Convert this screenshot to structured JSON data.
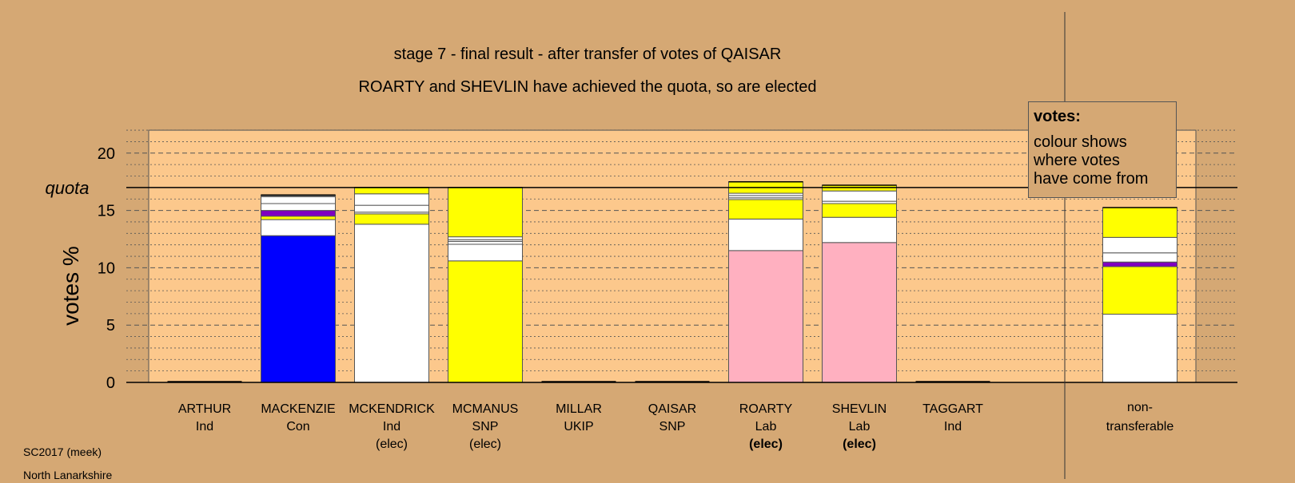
{
  "chart_data": {
    "type": "bar",
    "stacked": true,
    "title": "stage 7 - final result - after transfer of votes of QAISAR",
    "subtitle": "ROARTY and SHEVLIN have achieved the quota, so are elected",
    "ylabel": "votes %",
    "ylim": [
      0,
      22
    ],
    "yticks": [
      0,
      5,
      10,
      15,
      20
    ],
    "grid": true,
    "quota": 17.0,
    "quota_label": "quota",
    "legend": {
      "title": "votes:",
      "body": "colour shows\nwhere votes\nhave come from",
      "placement": "top-right"
    },
    "categories": [
      {
        "name": "ARTHUR",
        "party": "Ind",
        "status": "",
        "status_bold": false,
        "segments": []
      },
      {
        "name": "MACKENZIE",
        "party": "Con",
        "status": "",
        "status_bold": false,
        "segments": [
          {
            "value": 12.8,
            "color": "#0000ff"
          },
          {
            "value": 1.4,
            "color": "#ffffff"
          },
          {
            "value": 0.3,
            "color": "#ffff00"
          },
          {
            "value": 0.5,
            "color": "#8000c0"
          },
          {
            "value": 0.6,
            "color": "#ffffff"
          },
          {
            "value": 0.6,
            "color": "#ffffff"
          },
          {
            "value": 0.05,
            "color": "#ffffff"
          },
          {
            "value": 0.1,
            "color": "#ffffff"
          }
        ]
      },
      {
        "name": "MCKENDRICK",
        "party": "Ind",
        "status": "(elec)",
        "status_bold": false,
        "segments": [
          {
            "value": 13.8,
            "color": "#ffffff"
          },
          {
            "value": 0.9,
            "color": "#ffff00"
          },
          {
            "value": 0.15,
            "color": "#ffffff"
          },
          {
            "value": 0.6,
            "color": "#ffffff"
          },
          {
            "value": 1.0,
            "color": "#ffffff"
          },
          {
            "value": 0.55,
            "color": "#ffff00"
          }
        ]
      },
      {
        "name": "MCMANUS",
        "party": "SNP",
        "status": "(elec)",
        "status_bold": false,
        "segments": [
          {
            "value": 10.6,
            "color": "#ffff00"
          },
          {
            "value": 1.45,
            "color": "#ffffff"
          },
          {
            "value": 0.25,
            "color": "#ffffff"
          },
          {
            "value": 0.15,
            "color": "#ffffff"
          },
          {
            "value": 0.25,
            "color": "#ffffff"
          },
          {
            "value": 4.3,
            "color": "#ffff00"
          }
        ]
      },
      {
        "name": "MILLAR",
        "party": "UKIP",
        "status": "",
        "status_bold": false,
        "segments": []
      },
      {
        "name": "QAISAR",
        "party": "SNP",
        "status": "",
        "status_bold": false,
        "segments": []
      },
      {
        "name": "ROARTY",
        "party": "Lab",
        "status": "(elec)",
        "status_bold": true,
        "segments": [
          {
            "value": 11.5,
            "color": "#ffb0c0"
          },
          {
            "value": 2.75,
            "color": "#ffffff"
          },
          {
            "value": 1.7,
            "color": "#ffff00"
          },
          {
            "value": 0.15,
            "color": "#ffffff"
          },
          {
            "value": 0.2,
            "color": "#ffffff"
          },
          {
            "value": 0.2,
            "color": "#ffffff"
          },
          {
            "value": 1.0,
            "color": "#ffff00"
          }
        ]
      },
      {
        "name": "SHEVLIN",
        "party": "Lab",
        "status": "(elec)",
        "status_bold": true,
        "segments": [
          {
            "value": 12.2,
            "color": "#ffb0c0"
          },
          {
            "value": 2.2,
            "color": "#ffffff"
          },
          {
            "value": 1.2,
            "color": "#ffff00"
          },
          {
            "value": 0.2,
            "color": "#ffffff"
          },
          {
            "value": 0.9,
            "color": "#ffffff"
          },
          {
            "value": 0.5,
            "color": "#ffff00"
          }
        ]
      },
      {
        "name": "TAGGART",
        "party": "Ind",
        "status": "",
        "status_bold": false,
        "segments": []
      }
    ],
    "non_transferable": {
      "label_line1": "non-",
      "label_line2": "transferable",
      "segments": [
        {
          "value": 5.95,
          "color": "#ffffff"
        },
        {
          "value": 4.15,
          "color": "#ffff00"
        },
        {
          "value": 0.4,
          "color": "#8000c0"
        },
        {
          "value": 0.8,
          "color": "#ffffff"
        },
        {
          "value": 1.35,
          "color": "#ffffff"
        },
        {
          "value": 2.6,
          "color": "#ffff00"
        }
      ]
    }
  },
  "footer": {
    "line1": "SC2017 (meek)",
    "line2": "North Lanarkshire"
  }
}
